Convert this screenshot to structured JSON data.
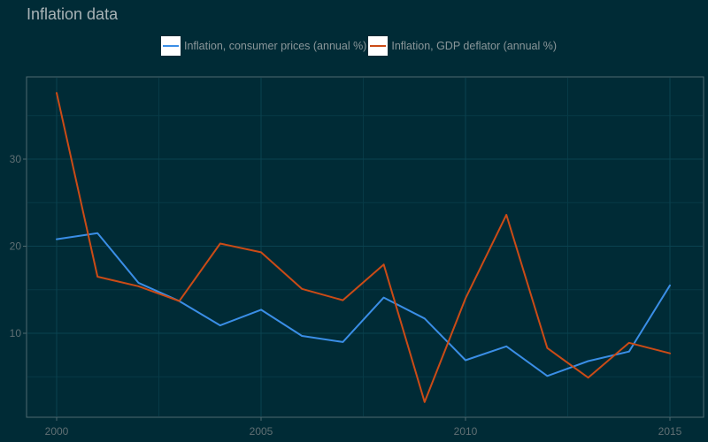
{
  "chart_data": {
    "type": "line",
    "title": "Inflation data",
    "xlabel": "",
    "ylabel": "",
    "x": [
      2000,
      2001,
      2002,
      2003,
      2004,
      2005,
      2006,
      2007,
      2008,
      2009,
      2010,
      2011,
      2012,
      2013,
      2014,
      2015
    ],
    "xlim": [
      2000,
      2015
    ],
    "ylim": [
      2,
      38
    ],
    "x_ticks": [
      2000,
      2005,
      2010,
      2015
    ],
    "y_ticks": [
      10,
      20,
      30
    ],
    "grid": true,
    "legend_position": "top",
    "series": [
      {
        "name": "Inflation, consumer prices (annual %)",
        "color": "#3a8ee6",
        "values": [
          20.8,
          21.5,
          15.8,
          13.7,
          10.9,
          12.7,
          9.7,
          9.0,
          14.1,
          11.7,
          6.9,
          8.5,
          5.1,
          6.8,
          7.9,
          15.5
        ]
      },
      {
        "name": "Inflation, GDP deflator (annual %)",
        "color": "#cb4b16",
        "values": [
          37.6,
          16.5,
          15.4,
          13.7,
          20.3,
          19.3,
          15.1,
          13.8,
          17.9,
          2.1,
          14.0,
          23.6,
          8.3,
          4.9,
          8.9,
          7.7
        ]
      }
    ]
  }
}
